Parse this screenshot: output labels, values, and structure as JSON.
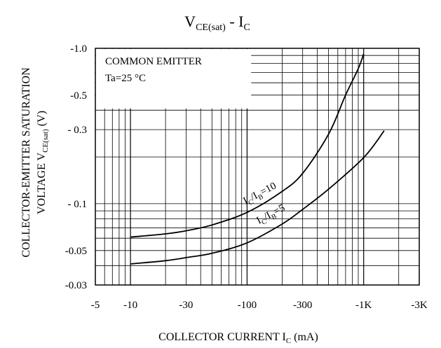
{
  "chart_data": {
    "type": "line",
    "title": {
      "main": "V",
      "sub": "CE(sat)",
      "mid": " - I",
      "sub2": "C"
    },
    "xlabel": {
      "main": "COLLECTOR CURRENT I",
      "sub": "C",
      "unit": " (mA)"
    },
    "ylabel_line1": "COLLECTOR-EMITTER SATURATION",
    "ylabel_line2": {
      "main": "VOLTAGE V",
      "sub": "CE(sat)",
      "unit": " (V)"
    },
    "x_scale": "log",
    "y_scale": "log",
    "xlim": [
      -5,
      -3000
    ],
    "ylim": [
      -0.03,
      -1.0
    ],
    "xticks": [
      {
        "value": -5,
        "label": "-5"
      },
      {
        "value": -10,
        "label": "-10"
      },
      {
        "value": -30,
        "label": "-30"
      },
      {
        "value": -100,
        "label": "-100"
      },
      {
        "value": -300,
        "label": "-300"
      },
      {
        "value": -1000,
        "label": "-1K"
      },
      {
        "value": -3000,
        "label": "-3K"
      }
    ],
    "yticks": [
      {
        "value": -1.0,
        "label": "-1.0"
      },
      {
        "value": -0.5,
        "label": "-0.5"
      },
      {
        "value": -0.3,
        "label": "- 0.3"
      },
      {
        "value": -0.1,
        "label": "- 0.1"
      },
      {
        "value": -0.05,
        "label": "-0.05"
      },
      {
        "value": -0.03,
        "label": "-0.03"
      }
    ],
    "grid": true,
    "annotation": {
      "line1": "COMMON EMITTER",
      "line2": "Ta=25 °C"
    },
    "series": [
      {
        "name": "IC/IB=10",
        "label_parts": [
          "I",
          "C",
          "/I",
          "B",
          "=10"
        ],
        "x": [
          -10,
          -20,
          -30,
          -50,
          -100,
          -200,
          -300,
          -500,
          -700,
          -900,
          -1000
        ],
        "y": [
          -0.061,
          -0.064,
          -0.067,
          -0.073,
          -0.088,
          -0.12,
          -0.157,
          -0.28,
          -0.5,
          -0.74,
          -0.92
        ]
      },
      {
        "name": "IC/IB=5",
        "label_parts": [
          "I",
          "C",
          "/I",
          "B",
          "=5"
        ],
        "x": [
          -10,
          -20,
          -30,
          -50,
          -100,
          -200,
          -300,
          -500,
          -1000,
          -1500
        ],
        "y": [
          -0.041,
          -0.043,
          -0.045,
          -0.048,
          -0.056,
          -0.074,
          -0.092,
          -0.124,
          -0.198,
          -0.295
        ]
      }
    ]
  }
}
